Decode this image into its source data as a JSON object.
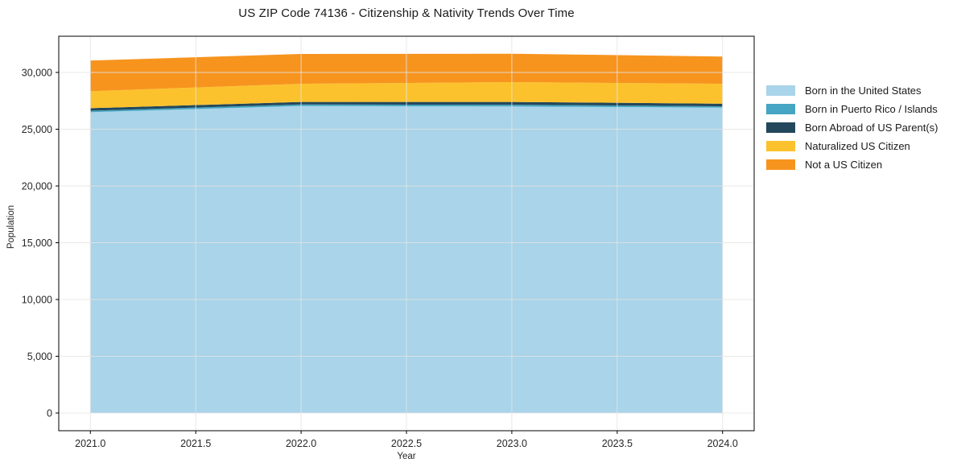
{
  "figure": {
    "background": "#ffffff"
  },
  "chart_data": {
    "type": "area",
    "stacked": true,
    "title": "US ZIP Code 74136 - Citizenship & Nativity Trends Over Time",
    "xlabel": "Year",
    "ylabel": "Population",
    "x": [
      2021.0,
      2022.0,
      2023.0,
      2024.0
    ],
    "series": [
      {
        "name": "Born in the United States",
        "color": "#a9d4e9",
        "values": [
          26500,
          27050,
          27000,
          26900
        ]
      },
      {
        "name": "Born in Puerto Rico / Islands",
        "color": "#45a5c2",
        "values": [
          130,
          130,
          150,
          120
        ]
      },
      {
        "name": "Born Abroad of US Parent(s)",
        "color": "#23485c",
        "values": [
          220,
          220,
          250,
          230
        ]
      },
      {
        "name": "Naturalized US Citizen",
        "color": "#fcc22d",
        "values": [
          1500,
          1600,
          1750,
          1750
        ]
      },
      {
        "name": "Not a US Citizen",
        "color": "#f7941e",
        "values": [
          2700,
          2630,
          2500,
          2400
        ]
      }
    ],
    "totals": [
      31050,
      31630,
      31650,
      31400
    ],
    "xlim": [
      2020.85,
      2024.15
    ],
    "ylim": [
      -1560,
      33190
    ],
    "xticks": [
      2021.0,
      2021.5,
      2022.0,
      2022.5,
      2023.0,
      2023.5,
      2024.0
    ],
    "xtick_labels": [
      "2021.0",
      "2021.5",
      "2022.0",
      "2022.5",
      "2023.0",
      "2023.5",
      "2024.0"
    ],
    "yticks": [
      0,
      5000,
      10000,
      15000,
      20000,
      25000,
      30000
    ],
    "ytick_labels": [
      "0",
      "5,000",
      "10,000",
      "15,000",
      "20,000",
      "25,000",
      "30,000"
    ],
    "grid": true,
    "legend_position": "upper-right-outside",
    "colors": {
      "grid": "#e4e4e4",
      "spine": "#000000",
      "tick_label": "#262626",
      "title": "#1a1a1a"
    }
  }
}
